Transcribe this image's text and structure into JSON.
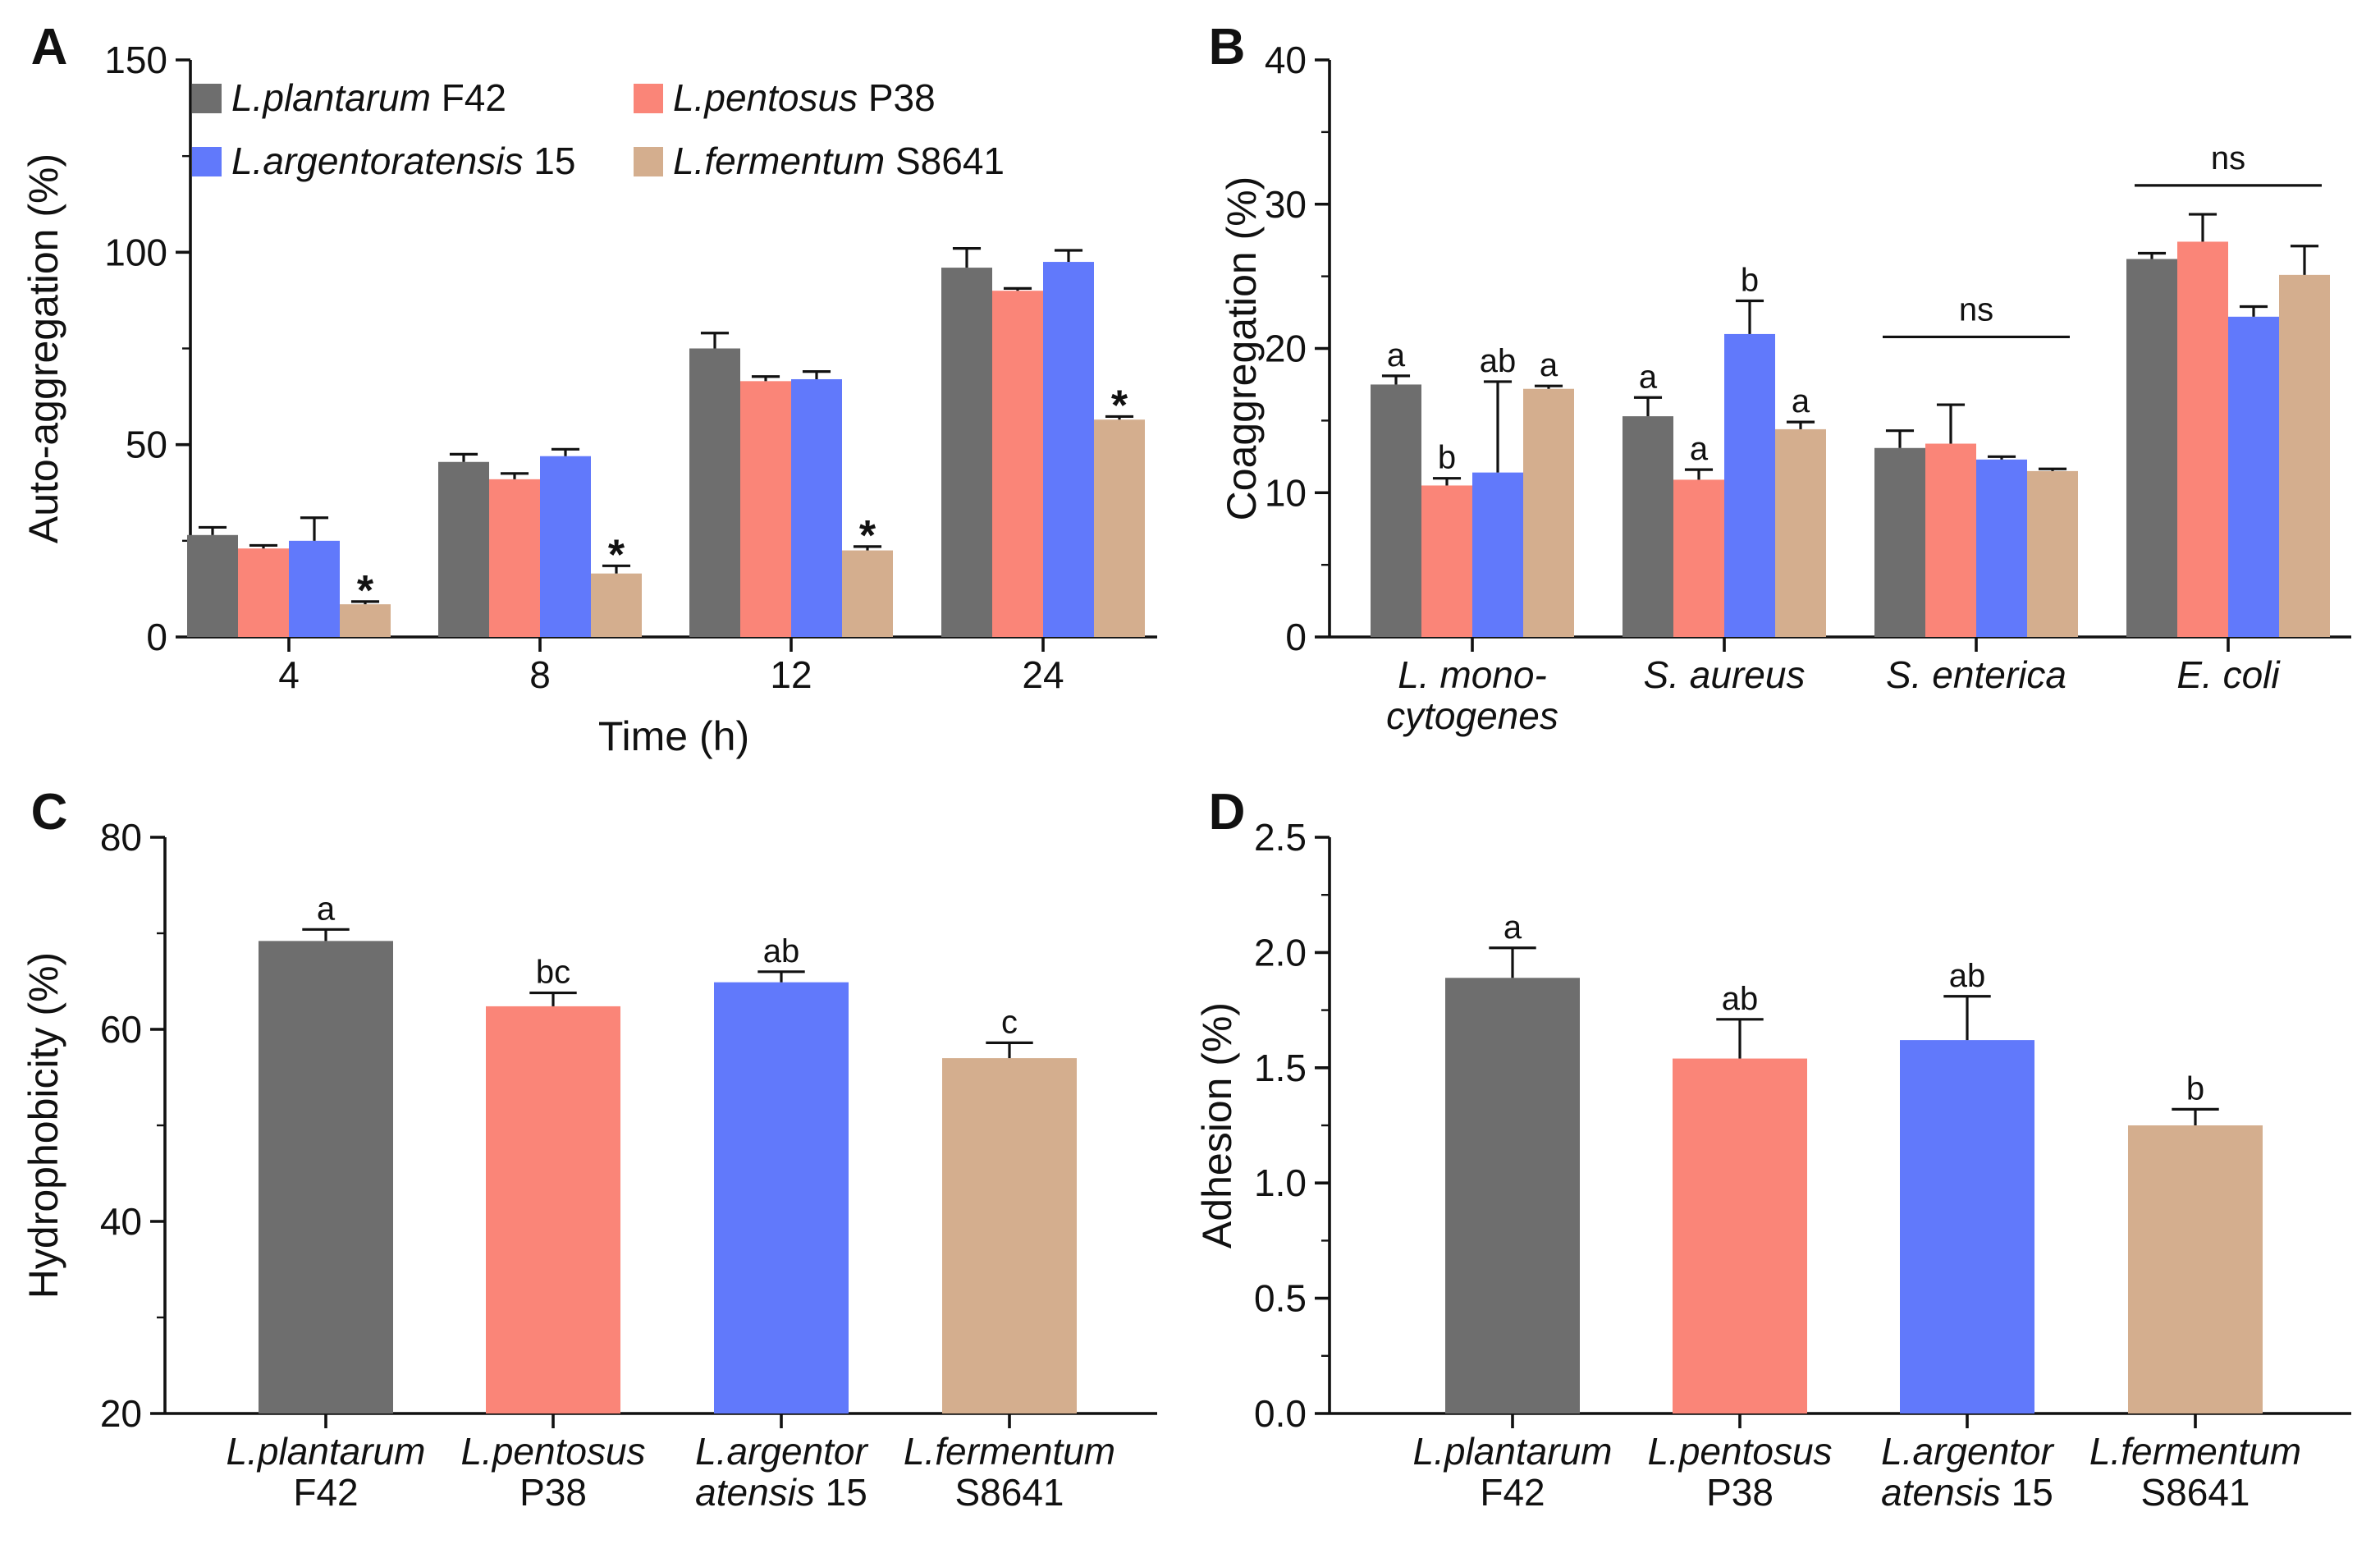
{
  "colors": {
    "L.plantarum F42": "#6e6e6e",
    "L.pentosus P38": "#fa8578",
    "L.argentoratensis 15": "#6179fb",
    "L.fermentum S8641": "#d4ae8e"
  },
  "chart_data": [
    {
      "panel": "A",
      "type": "bar",
      "title": "",
      "xlabel": "Time (h)",
      "ylabel": "Auto-aggregation (%)",
      "ylim": [
        0,
        150
      ],
      "yticks": [
        0,
        50,
        100,
        150
      ],
      "categories": [
        "4",
        "8",
        "12",
        "24"
      ],
      "legend": [
        {
          "italic": "L.plantarum",
          "rest": " F42",
          "series": "L.plantarum F42"
        },
        {
          "italic": "L.pentosus",
          "rest": " P38",
          "series": "L.pentosus P38"
        },
        {
          "italic": "L.argentoratensis",
          "rest": " 15",
          "series": "L.argentoratensis 15"
        },
        {
          "italic": "L.fermentum",
          "rest": " S8641",
          "series": "L.fermentum S8641"
        }
      ],
      "series": [
        {
          "name": "L.plantarum F42",
          "values": [
            26.5,
            45.5,
            75.0,
            96.0
          ],
          "errors": [
            2.0,
            2.0,
            4.0,
            5.0
          ],
          "labels": [
            "",
            "",
            "",
            ""
          ]
        },
        {
          "name": "L.pentosus P38",
          "values": [
            23.0,
            41.0,
            66.5,
            90.0
          ],
          "errors": [
            0.8,
            1.5,
            1.2,
            0.6
          ],
          "labels": [
            "",
            "",
            "",
            ""
          ]
        },
        {
          "name": "L.argentoratensis 15",
          "values": [
            25.0,
            47.0,
            67.0,
            97.5
          ],
          "errors": [
            6.0,
            1.8,
            2.0,
            3.0
          ],
          "labels": [
            "",
            "",
            "",
            ""
          ]
        },
        {
          "name": "L.fermentum S8641",
          "values": [
            8.5,
            16.5,
            22.5,
            56.5
          ],
          "errors": [
            0.7,
            2.0,
            1.0,
            0.8
          ],
          "labels": [
            "*",
            "*",
            "*",
            "*"
          ]
        }
      ],
      "annotations": []
    },
    {
      "panel": "B",
      "type": "bar",
      "title": "",
      "xlabel": "",
      "ylabel": "Coaggregation (%)",
      "ylim": [
        0,
        40
      ],
      "yticks": [
        0,
        10,
        20,
        30,
        40
      ],
      "categories": [
        {
          "lines": [
            "L. mono-",
            "cytogenes"
          ]
        },
        {
          "lines": [
            "S. aureus"
          ]
        },
        {
          "lines": [
            "S. enterica"
          ]
        },
        {
          "lines": [
            "E. coli"
          ]
        }
      ],
      "series": [
        {
          "name": "L.plantarum F42",
          "values": [
            17.5,
            15.3,
            13.1,
            26.2
          ],
          "errors": [
            0.6,
            1.3,
            1.2,
            0.4
          ],
          "labels": [
            "a",
            "a",
            "",
            ""
          ]
        },
        {
          "name": "L.pentosus P38",
          "values": [
            10.5,
            10.9,
            13.4,
            27.4
          ],
          "errors": [
            0.5,
            0.7,
            2.7,
            1.9
          ],
          "labels": [
            "b",
            "a",
            "",
            ""
          ]
        },
        {
          "name": "L.argentoratensis 15",
          "values": [
            11.4,
            21.0,
            12.3,
            22.2
          ],
          "errors": [
            6.3,
            2.3,
            0.2,
            0.7
          ],
          "labels": [
            "ab",
            "b",
            "",
            ""
          ]
        },
        {
          "name": "L.fermentum S8641",
          "values": [
            17.2,
            14.4,
            11.5,
            25.1
          ],
          "errors": [
            0.2,
            0.5,
            0.15,
            2.0
          ],
          "labels": [
            "a",
            "a",
            "",
            ""
          ]
        }
      ],
      "annotations": [
        {
          "category_index": 2,
          "text": "ns",
          "y": 20.8
        },
        {
          "category_index": 3,
          "text": "ns",
          "y": 31.3
        }
      ]
    },
    {
      "panel": "C",
      "type": "bar",
      "title": "",
      "xlabel": "",
      "ylabel": "Hydrophobicity (%)",
      "ylim": [
        20,
        80
      ],
      "yticks": [
        20,
        40,
        60,
        80
      ],
      "categories": [
        {
          "lines": [
            "L.plantarum",
            "F42"
          ],
          "italic_lines": [
            0
          ]
        },
        {
          "lines": [
            "L.pentosus",
            "P38"
          ],
          "italic_lines": [
            0
          ]
        },
        {
          "lines": [
            "L.argentor",
            "atensis 15"
          ],
          "italic_lines": [
            0
          ],
          "split_second": [
            "atensis",
            " 15"
          ]
        },
        {
          "lines": [
            "L.fermentum",
            "S8641"
          ],
          "italic_lines": [
            0
          ]
        }
      ],
      "series": [
        {
          "name": "values",
          "values": [
            69.2,
            62.4,
            64.9,
            57.0
          ],
          "errors": [
            1.2,
            1.4,
            1.1,
            1.6
          ],
          "labels": [
            "a",
            "bc",
            "ab",
            "c"
          ]
        }
      ]
    },
    {
      "panel": "D",
      "type": "bar",
      "title": "",
      "xlabel": "",
      "ylabel": "Adhesion (%)",
      "ylim": [
        0,
        2.5
      ],
      "yticks": [
        "0.0",
        "0.5",
        "1.0",
        "1.5",
        "2.0",
        "2.5"
      ],
      "categories": [
        {
          "lines": [
            "L.plantarum",
            "F42"
          ],
          "italic_lines": [
            0
          ]
        },
        {
          "lines": [
            "L.pentosus",
            "P38"
          ],
          "italic_lines": [
            0
          ]
        },
        {
          "lines": [
            "L.argentor",
            "atensis 15"
          ],
          "italic_lines": [
            0
          ],
          "split_second": [
            "atensis",
            " 15"
          ]
        },
        {
          "lines": [
            "L.fermentum",
            "S8641"
          ],
          "italic_lines": [
            0
          ]
        }
      ],
      "series": [
        {
          "name": "values",
          "values": [
            1.89,
            1.54,
            1.62,
            1.25
          ],
          "errors": [
            0.13,
            0.17,
            0.19,
            0.07
          ],
          "labels": [
            "a",
            "ab",
            "ab",
            "b"
          ]
        }
      ]
    }
  ]
}
